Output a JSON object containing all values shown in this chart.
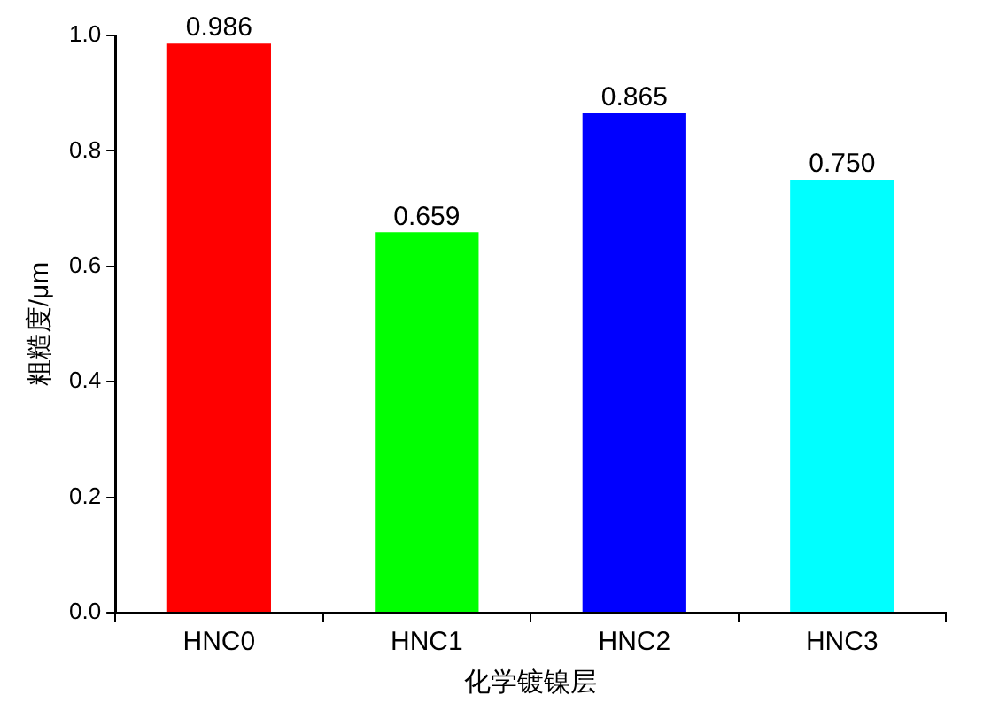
{
  "chart_data": {
    "type": "bar",
    "xlabel": "化学镀镍层",
    "ylabel": "粗糙度/μm",
    "categories": [
      "HNC0",
      "HNC1",
      "HNC2",
      "HNC3"
    ],
    "values": [
      0.986,
      0.659,
      0.865,
      0.75
    ],
    "colors": [
      "#ff0000",
      "#00ff00",
      "#0000ff",
      "#00ffff"
    ],
    "ylim": [
      0,
      1.0
    ],
    "yticks": [
      {
        "value": 0,
        "label": "0.0"
      },
      {
        "value": 0.2,
        "label": "0.2"
      },
      {
        "value": 0.4,
        "label": "0.4"
      },
      {
        "value": 0.6,
        "label": "0.6"
      },
      {
        "value": 0.8,
        "label": "0.8"
      },
      {
        "value": 1.0,
        "label": "1.0"
      }
    ],
    "value_labels": [
      "0.986",
      "0.659",
      "0.865",
      "0.750"
    ]
  }
}
